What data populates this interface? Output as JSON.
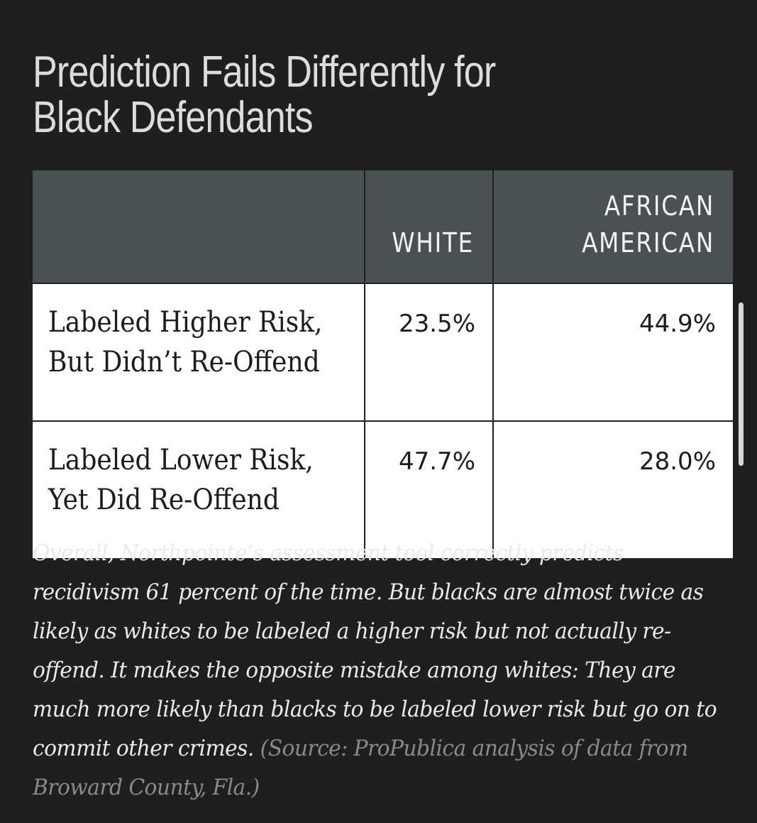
{
  "title": {
    "line1": "Prediction Fails Differently for",
    "line2": "Black Defendants"
  },
  "chart_data": {
    "type": "table",
    "columns": [
      "",
      "WHITE",
      "AFRICAN AMERICAN"
    ],
    "header": {
      "white": "WHITE",
      "aa_line1": "AFRICAN",
      "aa_line2": "AMERICAN"
    },
    "rows": [
      {
        "label_line1": "Labeled Higher Risk,",
        "label_line2": "But Didn’t Re-Offend",
        "white": "23.5%",
        "african_american": "44.9%"
      },
      {
        "label_line1": "Labeled Lower Risk,",
        "label_line2": "Yet Did Re-Offend",
        "white": "47.7%",
        "african_american": "28.0%"
      }
    ]
  },
  "caption": {
    "line1": "Overall, Northpointe’s assessment tool correctly predicts",
    "line2": "recidivism 61 percent of the time. But blacks are almost twice as",
    "line3": "likely as whites to be labeled a higher risk but not actually re-",
    "line4": "offend. It makes the opposite mistake among whites: They are",
    "line5": "much more likely than blacks to be labeled lower risk but go on to",
    "line6": "commit other crimes.",
    "source_line1": "(Source: ProPublica analysis of data from",
    "source_line2": "Broward County, Fla.)"
  },
  "colors": {
    "background": "#1f1f1f",
    "header_bg": "#4b5053",
    "cell_bg": "#ffffff",
    "source_text": "#8a8a8a"
  }
}
